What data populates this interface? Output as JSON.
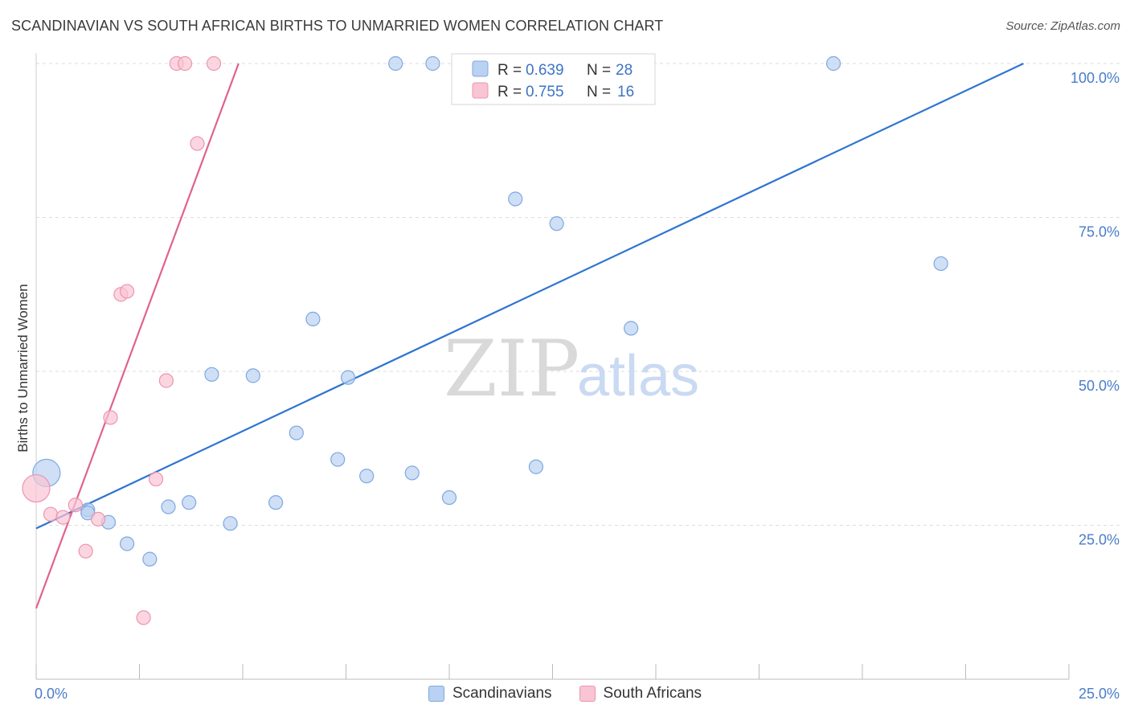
{
  "title": "SCANDINAVIAN VS SOUTH AFRICAN BIRTHS TO UNMARRIED WOMEN CORRELATION CHART",
  "source": "Source: ZipAtlas.com",
  "watermark": {
    "zip": "ZIP",
    "atlas": "atlas"
  },
  "colors": {
    "scandinavians_fill": "#b9d1f2",
    "scandinavians_stroke": "#7fa8e0",
    "scandinavians_line": "#2f74d0",
    "south_africans_fill": "#f9c4d3",
    "south_africans_stroke": "#ee94b0",
    "south_africans_line": "#e0628f",
    "tick_label": "#4a7cc9",
    "grid": "#dddddd"
  },
  "legend": {
    "rows": [
      {
        "r_label": "R = ",
        "r_value": "0.639",
        "n_label": "N = ",
        "n_value": "28"
      },
      {
        "r_label": "R = ",
        "r_value": "0.755",
        "n_label": "N = ",
        "n_value": "16"
      }
    ]
  },
  "chart_data": {
    "type": "scatter",
    "title": "SCANDINAVIAN VS SOUTH AFRICAN BIRTHS TO UNMARRIED WOMEN CORRELATION CHART",
    "xlabel": "",
    "ylabel": "Births to Unmarried Women",
    "xlim": [
      0,
      25
    ],
    "ylim": [
      0,
      100
    ],
    "x_tick_labels": [
      "0.0%",
      "25.0%"
    ],
    "y_ticks": [
      25,
      50,
      75,
      100
    ],
    "y_tick_labels": [
      "25.0%",
      "50.0%",
      "75.0%",
      "100.0%"
    ],
    "grid": true,
    "series": [
      {
        "name": "Scandinavians",
        "points": [
          {
            "x": 0.25,
            "y": 33.5,
            "big": true
          },
          {
            "x": 1.25,
            "y": 27.5
          },
          {
            "x": 1.25,
            "y": 27.0
          },
          {
            "x": 1.75,
            "y": 25.5
          },
          {
            "x": 2.2,
            "y": 22.0
          },
          {
            "x": 2.75,
            "y": 19.5
          },
          {
            "x": 3.2,
            "y": 28.0
          },
          {
            "x": 3.7,
            "y": 28.7
          },
          {
            "x": 4.25,
            "y": 49.5
          },
          {
            "x": 4.7,
            "y": 25.3
          },
          {
            "x": 5.25,
            "y": 49.3
          },
          {
            "x": 5.8,
            "y": 28.7
          },
          {
            "x": 6.3,
            "y": 40.0
          },
          {
            "x": 6.7,
            "y": 58.5
          },
          {
            "x": 7.3,
            "y": 35.7
          },
          {
            "x": 7.55,
            "y": 49.0
          },
          {
            "x": 8.0,
            "y": 33.0
          },
          {
            "x": 8.7,
            "y": 100.0
          },
          {
            "x": 9.1,
            "y": 33.5
          },
          {
            "x": 9.6,
            "y": 100.0
          },
          {
            "x": 10.0,
            "y": 29.5
          },
          {
            "x": 10.7,
            "y": 100.0
          },
          {
            "x": 11.6,
            "y": 78.0
          },
          {
            "x": 12.1,
            "y": 34.5
          },
          {
            "x": 12.6,
            "y": 74.0
          },
          {
            "x": 14.4,
            "y": 57.0
          },
          {
            "x": 19.3,
            "y": 100.0
          },
          {
            "x": 21.9,
            "y": 67.5
          }
        ],
        "trend": {
          "x": [
            0,
            23.9
          ],
          "y": [
            24.5,
            100.0
          ]
        }
      },
      {
        "name": "South Africans",
        "points": [
          {
            "x": 0.0,
            "y": 31.0,
            "big": true
          },
          {
            "x": 0.35,
            "y": 26.8
          },
          {
            "x": 0.65,
            "y": 26.3
          },
          {
            "x": 0.95,
            "y": 28.3
          },
          {
            "x": 1.2,
            "y": 20.8
          },
          {
            "x": 1.5,
            "y": 26.0
          },
          {
            "x": 1.8,
            "y": 42.5
          },
          {
            "x": 2.05,
            "y": 62.5
          },
          {
            "x": 2.2,
            "y": 63.0
          },
          {
            "x": 2.6,
            "y": 10.0
          },
          {
            "x": 2.9,
            "y": 32.5
          },
          {
            "x": 3.15,
            "y": 48.5
          },
          {
            "x": 3.4,
            "y": 100.0
          },
          {
            "x": 3.6,
            "y": 100.0
          },
          {
            "x": 3.9,
            "y": 87.0
          },
          {
            "x": 4.3,
            "y": 100.0
          }
        ],
        "trend": {
          "x": [
            0,
            4.9
          ],
          "y": [
            11.5,
            100.0
          ]
        }
      }
    ]
  }
}
